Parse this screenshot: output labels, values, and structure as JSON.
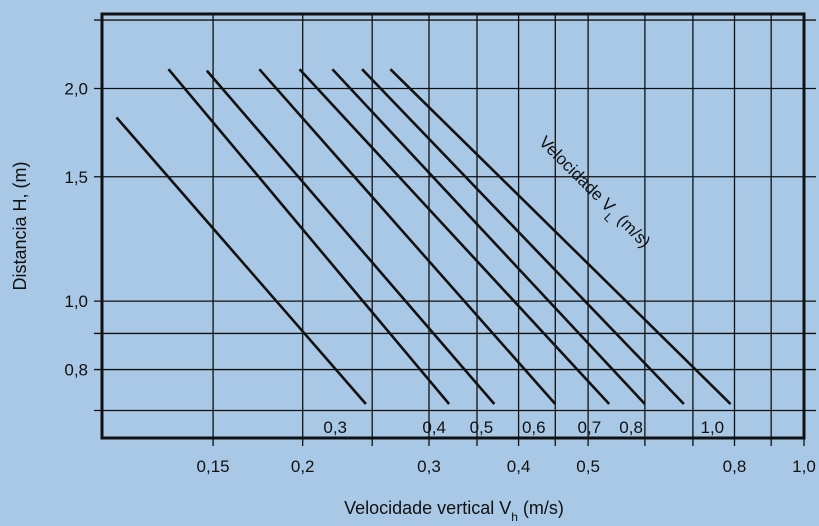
{
  "colors": {
    "background": "#a9c8e6",
    "line": "#111111",
    "grid": "#111111"
  },
  "chart_data": {
    "type": "line",
    "title": "",
    "x_scale": "log",
    "y_scale": "log",
    "xlim": [
      0.105,
      1.0
    ],
    "ylim": [
      0.64,
      2.55
    ],
    "x_ticks": [
      {
        "value": 0.15,
        "label": "0,15"
      },
      {
        "value": 0.2,
        "label": "0,2"
      },
      {
        "value": 0.3,
        "label": "0,3"
      },
      {
        "value": 0.4,
        "label": "0,4"
      },
      {
        "value": 0.5,
        "label": "0,5"
      },
      {
        "value": 0.8,
        "label": "0,8"
      },
      {
        "value": 1.0,
        "label": "1,0"
      }
    ],
    "x_minor_grid": [
      0.25,
      0.35,
      0.45,
      0.6,
      0.7,
      0.9
    ],
    "y_ticks": [
      {
        "value": 0.8,
        "label": "0,8"
      },
      {
        "value": 1.0,
        "label": "1,0"
      },
      {
        "value": 1.5,
        "label": "1,5"
      },
      {
        "value": 2.0,
        "label": "2,0"
      }
    ],
    "y_minor_grid": [
      0.7,
      0.9,
      2.5
    ],
    "xlabel": {
      "main": "Velocidade vertical V",
      "sub": "h",
      "unit": " (m/s)"
    },
    "ylabel": "Distancia H, (m)",
    "annotation": {
      "main": "Velocidade V",
      "sub": "L",
      "unit": " (m/s)"
    },
    "grid": true,
    "series": [
      {
        "name": "0,3",
        "points": [
          [
            0.11,
            1.82
          ],
          [
            0.245,
            0.715
          ]
        ]
      },
      {
        "name": "0,4",
        "points": [
          [
            0.13,
            2.13
          ],
          [
            0.32,
            0.715
          ]
        ]
      },
      {
        "name": "0,5",
        "points": [
          [
            0.147,
            2.12
          ],
          [
            0.37,
            0.715
          ]
        ]
      },
      {
        "name": "0,6",
        "points": [
          [
            0.174,
            2.13
          ],
          [
            0.45,
            0.715
          ]
        ]
      },
      {
        "name": "0,7",
        "points": [
          [
            0.198,
            2.13
          ],
          [
            0.535,
            0.715
          ]
        ]
      },
      {
        "name": "0,8",
        "points": [
          [
            0.22,
            2.13
          ],
          [
            0.6,
            0.715
          ]
        ]
      },
      {
        "name": "1,0",
        "points": [
          [
            0.242,
            2.13
          ],
          [
            0.68,
            0.715
          ]
        ]
      },
      {
        "name": "",
        "points": [
          [
            0.265,
            2.13
          ],
          [
            0.79,
            0.715
          ]
        ]
      }
    ],
    "curve_labels": [
      {
        "text": "0,3",
        "x": 0.222
      },
      {
        "text": "0,4",
        "x": 0.305
      },
      {
        "text": "0,5",
        "x": 0.355
      },
      {
        "text": "0,6",
        "x": 0.42
      },
      {
        "text": "0,7",
        "x": 0.502
      },
      {
        "text": "0,8",
        "x": 0.574
      },
      {
        "text": "1,0",
        "x": 0.745
      }
    ]
  }
}
